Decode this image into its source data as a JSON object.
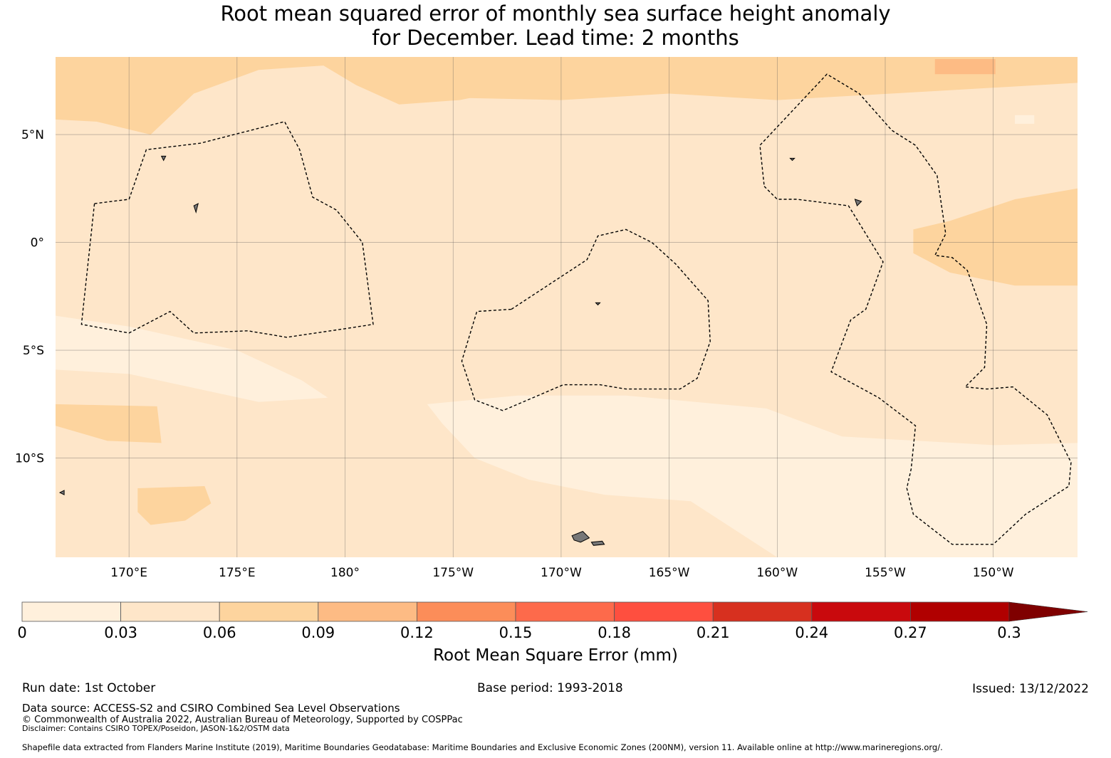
{
  "title": {
    "line1": "Root mean squared error of monthly sea surface height anomaly",
    "line2": "for December. Lead time: 2 months"
  },
  "map": {
    "lon_range": [
      166.6,
      213.9
    ],
    "lat_range": [
      -14.6,
      8.6
    ],
    "lon_ticks": [
      {
        "value": 170,
        "label": "170°E"
      },
      {
        "value": 175,
        "label": "175°E"
      },
      {
        "value": 180,
        "label": "180°"
      },
      {
        "value": 185,
        "label": "175°W"
      },
      {
        "value": 190,
        "label": "170°W"
      },
      {
        "value": 195,
        "label": "165°W"
      },
      {
        "value": 200,
        "label": "160°W"
      },
      {
        "value": 205,
        "label": "155°W"
      },
      {
        "value": 210,
        "label": "150°W"
      }
    ],
    "lat_ticks": [
      {
        "value": 5,
        "label": "5°N"
      },
      {
        "value": 0,
        "label": "0°"
      },
      {
        "value": -5,
        "label": "5°S"
      },
      {
        "value": -10,
        "label": "10°S"
      }
    ],
    "background_class_color": "#fee6c9",
    "error_regions": [
      {
        "name": "north-west-band",
        "level": "0.06-0.09",
        "color": "#fdd49e",
        "points": [
          [
            166.6,
            8.6
          ],
          [
            187.3,
            8.6
          ],
          [
            187.3,
            7.0
          ],
          [
            185.3,
            6.6
          ],
          [
            182.5,
            6.4
          ],
          [
            180.5,
            7.3
          ],
          [
            179.0,
            8.2
          ],
          [
            176.0,
            8.0
          ],
          [
            173.0,
            6.9
          ],
          [
            171.0,
            5.0
          ],
          [
            168.5,
            5.6
          ],
          [
            166.6,
            5.7
          ]
        ]
      },
      {
        "name": "north-east-band",
        "level": "0.06-0.09",
        "color": "#fdd49e",
        "points": [
          [
            184.0,
            8.6
          ],
          [
            213.9,
            8.6
          ],
          [
            213.9,
            7.4
          ],
          [
            207.0,
            7.0
          ],
          [
            200.0,
            6.6
          ],
          [
            195.0,
            6.9
          ],
          [
            190.0,
            6.6
          ],
          [
            185.5,
            6.7
          ],
          [
            184.0,
            7.5
          ]
        ]
      },
      {
        "name": "east-equatorial-patch",
        "level": "0.06-0.09",
        "color": "#fdd49e",
        "points": [
          [
            213.9,
            2.5
          ],
          [
            213.9,
            -2.0
          ],
          [
            211.0,
            -2.0
          ],
          [
            208.0,
            -1.4
          ],
          [
            206.3,
            -0.5
          ],
          [
            206.3,
            0.6
          ],
          [
            208.0,
            1.0
          ],
          [
            211.0,
            2.0
          ]
        ]
      },
      {
        "name": "west-south-patch",
        "level": "0.06-0.09",
        "color": "#fdd49e",
        "points": [
          [
            166.6,
            -7.5
          ],
          [
            171.3,
            -7.6
          ],
          [
            171.5,
            -9.3
          ],
          [
            169.0,
            -9.2
          ],
          [
            166.6,
            -8.5
          ]
        ]
      },
      {
        "name": "south-small-patch",
        "level": "0.06-0.09",
        "color": "#fdd49e",
        "points": [
          [
            170.4,
            -11.4
          ],
          [
            173.5,
            -11.3
          ],
          [
            173.8,
            -12.1
          ],
          [
            172.6,
            -12.9
          ],
          [
            171.0,
            -13.1
          ],
          [
            170.4,
            -12.5
          ]
        ]
      },
      {
        "name": "north-east-spot",
        "level": "0.09-0.12",
        "color": "#fdbb84",
        "points": [
          [
            207.3,
            8.5
          ],
          [
            210.1,
            8.5
          ],
          [
            210.1,
            7.8
          ],
          [
            207.3,
            7.8
          ]
        ]
      },
      {
        "name": "south-west-light-band",
        "level": "0-0.03",
        "color": "#fff0dc",
        "points": [
          [
            166.6,
            -3.4
          ],
          [
            170.0,
            -3.9
          ],
          [
            175.0,
            -5.0
          ],
          [
            178.0,
            -6.4
          ],
          [
            179.2,
            -7.2
          ],
          [
            176.0,
            -7.4
          ],
          [
            170.0,
            -6.1
          ],
          [
            166.6,
            -5.9
          ]
        ]
      },
      {
        "name": "south-central-light-band",
        "level": "0-0.03",
        "color": "#fff0dc",
        "points": [
          [
            183.8,
            -7.5
          ],
          [
            188.0,
            -7.1
          ],
          [
            193.0,
            -7.1
          ],
          [
            199.5,
            -7.7
          ],
          [
            203.0,
            -9.0
          ],
          [
            210.0,
            -9.4
          ],
          [
            213.9,
            -9.3
          ],
          [
            213.9,
            -14.6
          ],
          [
            200.0,
            -14.6
          ],
          [
            196.0,
            -12.0
          ],
          [
            192.0,
            -11.7
          ],
          [
            188.5,
            -11.0
          ],
          [
            186.0,
            -10.0
          ],
          [
            184.5,
            -8.4
          ]
        ]
      },
      {
        "name": "north-east-tiny-light",
        "level": "0-0.03",
        "color": "#fff0dc",
        "points": [
          [
            211.0,
            5.9
          ],
          [
            211.9,
            5.9
          ],
          [
            211.9,
            5.5
          ],
          [
            211.0,
            5.5
          ]
        ]
      }
    ],
    "eez_boundaries": [
      {
        "name": "kiribati-gilbert-eez",
        "points": [
          [
            168.4,
            1.8
          ],
          [
            170.0,
            2.0
          ],
          [
            170.8,
            4.3
          ],
          [
            173.3,
            4.6
          ],
          [
            177.2,
            5.6
          ],
          [
            177.9,
            4.3
          ],
          [
            178.5,
            2.1
          ],
          [
            179.6,
            1.5
          ],
          [
            180.8,
            0.0
          ],
          [
            181.3,
            -3.8
          ],
          [
            180.0,
            -4.0
          ],
          [
            177.3,
            -4.4
          ],
          [
            175.5,
            -4.1
          ],
          [
            173.0,
            -4.2
          ],
          [
            171.9,
            -3.2
          ],
          [
            170.0,
            -4.2
          ],
          [
            167.8,
            -3.8
          ]
        ]
      },
      {
        "name": "phoenix-islands-eez",
        "points": [
          [
            187.7,
            -3.1
          ],
          [
            191.2,
            -0.8
          ],
          [
            191.7,
            0.3
          ],
          [
            193.0,
            0.6
          ],
          [
            194.2,
            0.0
          ],
          [
            195.3,
            -1.0
          ],
          [
            196.8,
            -2.7
          ],
          [
            196.9,
            -4.6
          ],
          [
            196.3,
            -6.3
          ],
          [
            195.5,
            -6.8
          ],
          [
            193.0,
            -6.8
          ],
          [
            191.8,
            -6.6
          ],
          [
            190.1,
            -6.6
          ],
          [
            187.3,
            -7.8
          ],
          [
            186.0,
            -7.3
          ],
          [
            185.4,
            -5.5
          ],
          [
            186.1,
            -3.2
          ]
        ]
      },
      {
        "name": "line-islands-eez",
        "points": [
          [
            199.4,
            2.6
          ],
          [
            200.0,
            2.0
          ],
          [
            200.9,
            2.0
          ],
          [
            203.3,
            1.7
          ],
          [
            204.9,
            -0.9
          ],
          [
            204.1,
            -3.1
          ],
          [
            203.4,
            -3.6
          ],
          [
            202.5,
            -6.0
          ],
          [
            204.7,
            -7.2
          ],
          [
            206.4,
            -8.5
          ],
          [
            206.2,
            -10.5
          ],
          [
            206.0,
            -11.4
          ],
          [
            206.3,
            -12.6
          ],
          [
            208.1,
            -14.0
          ],
          [
            210.0,
            -14.0
          ],
          [
            211.5,
            -12.6
          ],
          [
            213.5,
            -11.3
          ],
          [
            213.6,
            -10.2
          ],
          [
            212.5,
            -8.0
          ],
          [
            210.9,
            -6.7
          ],
          [
            209.7,
            -6.8
          ],
          [
            208.7,
            -6.7
          ],
          [
            209.6,
            -5.8
          ],
          [
            209.7,
            -3.8
          ],
          [
            208.8,
            -1.3
          ],
          [
            208.1,
            -0.7
          ],
          [
            207.3,
            -0.6
          ],
          [
            207.8,
            0.4
          ],
          [
            207.4,
            3.1
          ],
          [
            206.4,
            4.5
          ],
          [
            205.3,
            5.2
          ],
          [
            203.8,
            6.9
          ],
          [
            202.3,
            7.8
          ],
          [
            199.2,
            4.5
          ]
        ]
      }
    ],
    "islands": [
      {
        "name": "samoa-upolu",
        "points": [
          [
            190.5,
            -13.6
          ],
          [
            191.0,
            -13.4
          ],
          [
            191.3,
            -13.7
          ],
          [
            190.9,
            -13.9
          ],
          [
            190.6,
            -13.8
          ]
        ]
      },
      {
        "name": "samoa-savaii",
        "points": [
          [
            191.4,
            -13.9
          ],
          [
            191.9,
            -13.85
          ],
          [
            192.0,
            -14.0
          ],
          [
            191.5,
            -14.05
          ]
        ]
      },
      {
        "name": "nanumea",
        "points": [
          [
            166.8,
            -11.6
          ],
          [
            167.0,
            -11.5
          ],
          [
            167.0,
            -11.7
          ]
        ]
      },
      {
        "name": "tokelau",
        "points": [
          [
            171.5,
            4.0
          ],
          [
            171.7,
            4.0
          ],
          [
            171.6,
            3.8
          ]
        ]
      },
      {
        "name": "tarawa",
        "points": [
          [
            173.0,
            1.7
          ],
          [
            173.2,
            1.8
          ],
          [
            173.1,
            1.4
          ]
        ]
      },
      {
        "name": "kiritimati",
        "points": [
          [
            203.6,
            2.0
          ],
          [
            203.9,
            1.9
          ],
          [
            203.7,
            1.7
          ]
        ]
      },
      {
        "name": "canton",
        "points": [
          [
            191.6,
            -2.8
          ],
          [
            191.8,
            -2.8
          ],
          [
            191.7,
            -2.9
          ]
        ]
      },
      {
        "name": "tabuaeran",
        "points": [
          [
            200.6,
            3.9
          ],
          [
            200.8,
            3.9
          ],
          [
            200.7,
            3.8
          ]
        ]
      }
    ]
  },
  "colorbar": {
    "tick_labels": [
      "0",
      "0.03",
      "0.06",
      "0.09",
      "0.12",
      "0.15",
      "0.18",
      "0.21",
      "0.24",
      "0.27",
      "0.3"
    ],
    "colors": [
      "#fff0dc",
      "#fee6c9",
      "#fdd49e",
      "#fdbb84",
      "#fc8d59",
      "#fd6a4b",
      "#fe4f3f",
      "#d7301f",
      "#c9090d",
      "#b00000"
    ],
    "extend_color": "#7f0000",
    "label": "Root Mean Square Error (mm)"
  },
  "footer": {
    "run_date": "Run date: 1st October",
    "base_period": "Base period: 1993-2018",
    "issued": "Issued: 13/12/2022",
    "data_source": "Data source: ACCESS-S2 and CSIRO Combined Sea Level Observations",
    "copyright": "© Commonwealth of Australia 2022, Australian Bureau of Meteorology, Supported by COSPPac",
    "disclaimer": "Disclaimer: Contains CSIRO TOPEX/Poseidon, JASON-1&2/OSTM data",
    "shapefile": "Shapefile data extracted from Flanders Marine Institute (2019), Maritime Boundaries Geodatabase: Maritime Boundaries and Exclusive Economic Zones (200NM), version 11. Available online at http://www.marineregions.org/."
  }
}
